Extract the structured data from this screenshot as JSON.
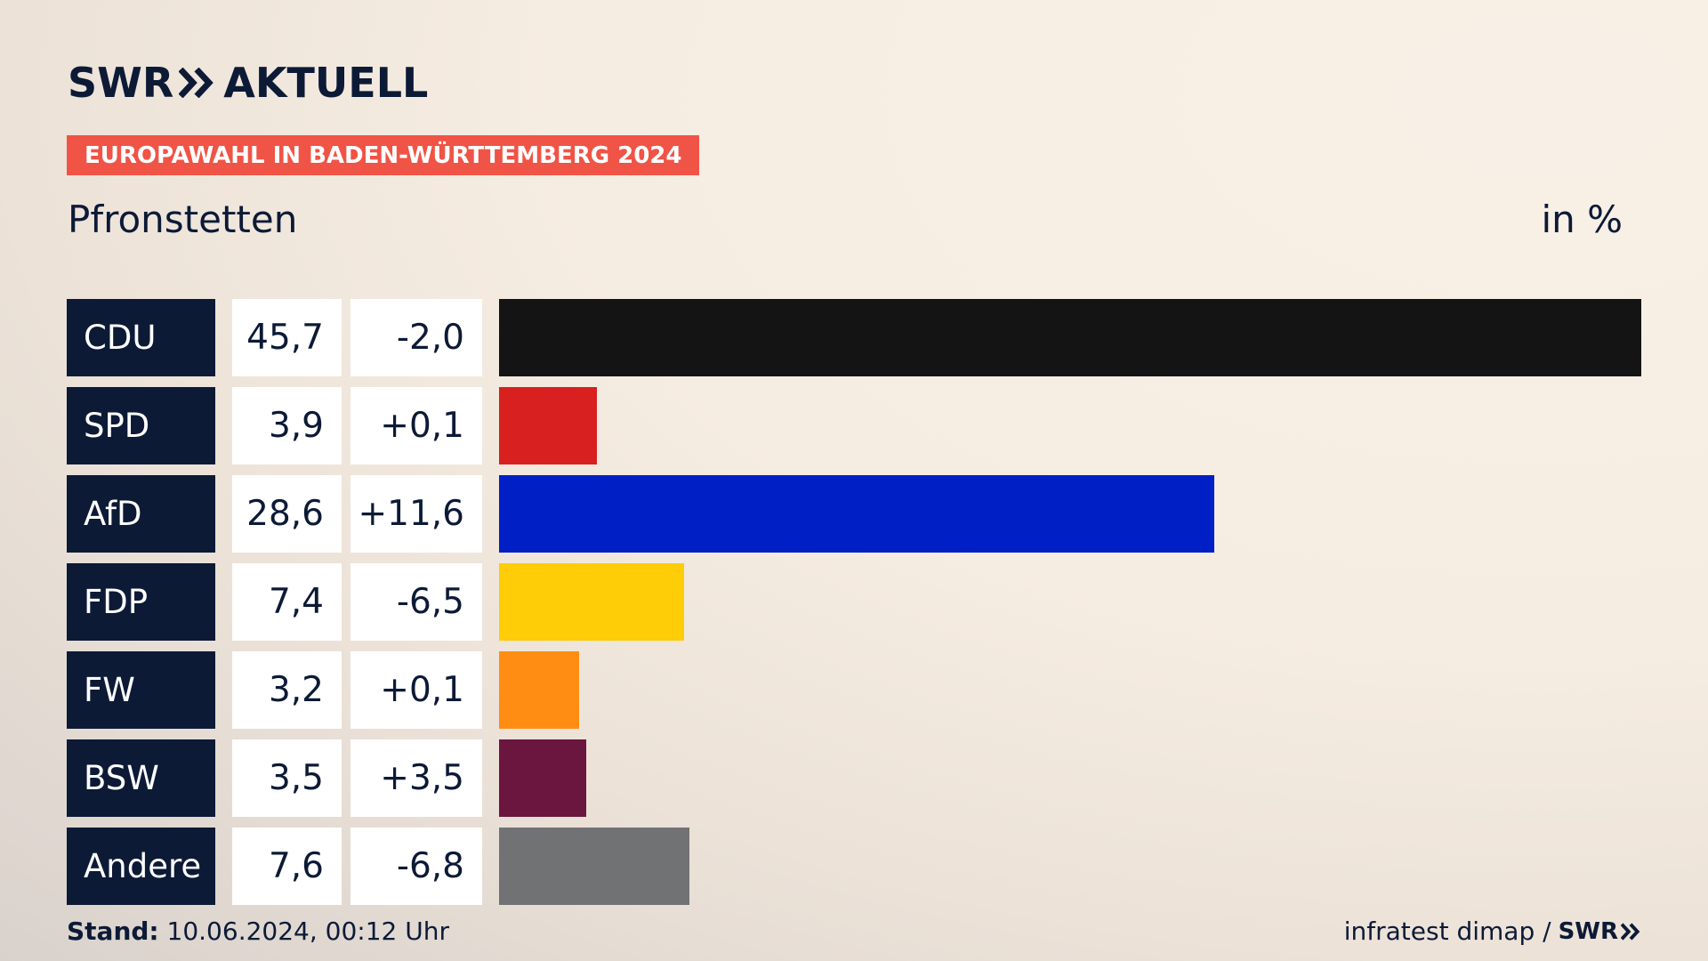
{
  "brand": {
    "swr": "SWR",
    "product": "AKTUELL",
    "footer_logo": "SWR"
  },
  "kicker": "EUROPAWAHL IN BADEN-WÜRTTEMBERG 2024",
  "place": "Pfronstetten",
  "unit": "in %",
  "footer": {
    "stand_label": "Stand:",
    "stand_value": "10.06.2024, 00:12 Uhr",
    "source": "infratest dimap /"
  },
  "colors": {
    "navy": "#0c1a36",
    "kicker": "#f05446"
  },
  "chart_data": {
    "type": "bar",
    "orientation": "horizontal",
    "unit": "in %",
    "categories": [
      "CDU",
      "SPD",
      "AfD",
      "FDP",
      "FW",
      "BSW",
      "Andere"
    ],
    "values": [
      45.7,
      3.9,
      28.6,
      7.4,
      3.2,
      3.5,
      7.6
    ],
    "value_labels": [
      "45,7",
      "3,9",
      "28,6",
      "7,4",
      "3,2",
      "3,5",
      "7,6"
    ],
    "diffs": [
      -2.0,
      0.1,
      11.6,
      -6.5,
      0.1,
      3.5,
      -6.8
    ],
    "diff_labels": [
      "-2,0",
      "+0,1",
      "+11,6",
      "-6,5",
      "+0,1",
      "+3,5",
      "-6,8"
    ],
    "bar_colors": [
      "#141414",
      "#d7201f",
      "#0020c6",
      "#ffcc08",
      "#ff8d14",
      "#6a163e",
      "#717274"
    ],
    "xlim": [
      0,
      45.7
    ]
  }
}
